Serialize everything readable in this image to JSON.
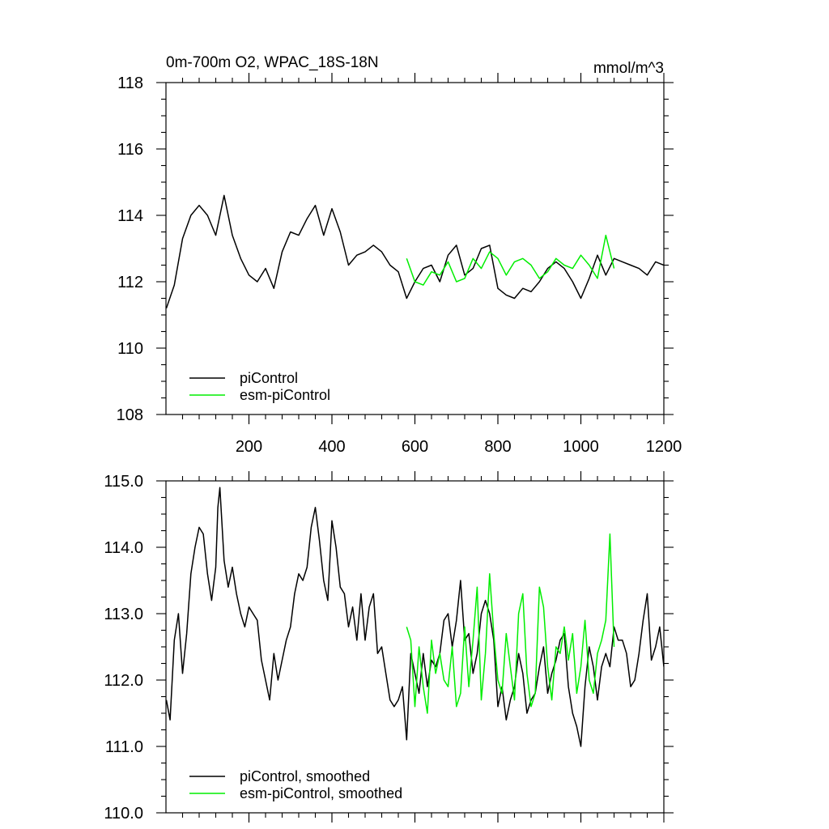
{
  "chart_data": [
    {
      "type": "line",
      "title": "0m-700m O2, WPAC_18S-18N",
      "units": "mmol/m^3",
      "xlim": [
        0,
        1200
      ],
      "ylim": [
        108,
        118
      ],
      "xticks": [
        200,
        400,
        600,
        800,
        1000,
        1200
      ],
      "yticks": [
        108,
        110,
        112,
        114,
        116,
        118
      ],
      "x_tick_labels": [
        "200",
        "400",
        "600",
        "800",
        "1000",
        "1200"
      ],
      "y_tick_labels": [
        "108",
        "110",
        "112",
        "114",
        "116",
        "118"
      ],
      "legend_position": "bottom-left",
      "series": [
        {
          "name": "piControl",
          "color": "#000000",
          "x": [
            1,
            20,
            40,
            60,
            80,
            100,
            120,
            140,
            160,
            180,
            200,
            220,
            240,
            260,
            280,
            300,
            320,
            340,
            360,
            380,
            400,
            420,
            440,
            460,
            480,
            500,
            520,
            540,
            560,
            580,
            600,
            620,
            640,
            660,
            680,
            700,
            720,
            740,
            760,
            780,
            800,
            820,
            840,
            860,
            880,
            900,
            920,
            940,
            960,
            980,
            1000,
            1020,
            1040,
            1060,
            1080,
            1100,
            1120,
            1140,
            1160,
            1180,
            1200
          ],
          "y": [
            111.2,
            111.9,
            113.3,
            114.0,
            114.3,
            114.0,
            113.4,
            114.6,
            113.4,
            112.7,
            112.2,
            112.0,
            112.4,
            111.8,
            112.9,
            113.5,
            113.4,
            113.9,
            114.3,
            113.4,
            114.2,
            113.5,
            112.5,
            112.8,
            112.9,
            113.1,
            112.9,
            112.5,
            112.3,
            111.5,
            112.0,
            112.4,
            112.5,
            112.0,
            112.8,
            113.1,
            112.2,
            112.4,
            113.0,
            113.1,
            111.8,
            111.6,
            111.5,
            111.8,
            111.7,
            112.0,
            112.4,
            112.6,
            112.4,
            112.0,
            111.5,
            112.1,
            112.8,
            112.2,
            112.7,
            112.6,
            112.5,
            112.4,
            112.2,
            112.6,
            112.5
          ]
        },
        {
          "name": "esm-piControl",
          "color": "#00ee00",
          "x": [
            580,
            600,
            620,
            640,
            660,
            680,
            700,
            720,
            740,
            760,
            780,
            800,
            820,
            840,
            860,
            880,
            900,
            920,
            940,
            960,
            980,
            1000,
            1020,
            1040,
            1060,
            1080
          ],
          "y": [
            112.7,
            112.0,
            111.9,
            112.3,
            112.2,
            112.6,
            112.0,
            112.1,
            112.7,
            112.4,
            112.9,
            112.7,
            112.2,
            112.6,
            112.7,
            112.5,
            112.1,
            112.3,
            112.7,
            112.5,
            112.4,
            112.8,
            112.5,
            112.1,
            113.4,
            112.4
          ]
        }
      ]
    },
    {
      "type": "line",
      "xlim": [
        0,
        1200
      ],
      "ylim": [
        110.0,
        115.0
      ],
      "xticks": [
        200,
        400,
        600,
        800,
        1000,
        1200
      ],
      "yticks": [
        110.0,
        111.0,
        112.0,
        113.0,
        114.0,
        115.0
      ],
      "y_tick_labels": [
        "110.0",
        "111.0",
        "112.0",
        "113.0",
        "114.0",
        "115.0"
      ],
      "legend_position": "bottom-left",
      "series": [
        {
          "name": "piControl, smoothed",
          "color": "#000000",
          "x": [
            1,
            10,
            20,
            30,
            40,
            50,
            60,
            70,
            80,
            90,
            100,
            110,
            120,
            125,
            130,
            140,
            150,
            160,
            170,
            180,
            190,
            200,
            210,
            220,
            230,
            240,
            250,
            260,
            270,
            280,
            290,
            300,
            310,
            320,
            330,
            340,
            350,
            360,
            370,
            380,
            390,
            400,
            410,
            420,
            430,
            440,
            450,
            460,
            470,
            480,
            490,
            500,
            510,
            520,
            530,
            540,
            550,
            560,
            570,
            575,
            580,
            590,
            600,
            610,
            620,
            630,
            640,
            650,
            660,
            670,
            680,
            690,
            700,
            710,
            720,
            730,
            740,
            750,
            760,
            770,
            780,
            790,
            800,
            810,
            820,
            830,
            840,
            850,
            860,
            870,
            880,
            890,
            900,
            910,
            920,
            930,
            940,
            950,
            960,
            970,
            980,
            990,
            1000,
            1010,
            1020,
            1030,
            1040,
            1050,
            1060,
            1070,
            1080,
            1090,
            1100,
            1110,
            1120,
            1130,
            1140,
            1150,
            1160,
            1170,
            1180,
            1190,
            1200
          ],
          "y": [
            111.7,
            111.4,
            112.6,
            113.0,
            112.1,
            112.7,
            113.6,
            114.0,
            114.3,
            114.2,
            113.6,
            113.2,
            113.7,
            114.6,
            114.9,
            113.8,
            113.4,
            113.7,
            113.3,
            113.0,
            112.8,
            113.1,
            113.0,
            112.9,
            112.3,
            112.0,
            111.7,
            112.4,
            112.0,
            112.3,
            112.6,
            112.8,
            113.3,
            113.6,
            113.5,
            113.7,
            114.3,
            114.6,
            114.1,
            113.5,
            113.2,
            114.4,
            114.0,
            113.4,
            113.3,
            112.8,
            113.1,
            112.6,
            113.3,
            112.6,
            113.1,
            113.3,
            112.4,
            112.5,
            112.1,
            111.7,
            111.6,
            111.7,
            111.9,
            111.5,
            111.1,
            112.4,
            112.1,
            111.8,
            112.4,
            111.9,
            112.3,
            112.2,
            112.4,
            112.9,
            113.0,
            112.5,
            112.9,
            113.5,
            112.6,
            112.7,
            112.1,
            112.4,
            113.0,
            113.2,
            113.0,
            112.6,
            111.6,
            111.9,
            111.4,
            111.7,
            111.9,
            112.4,
            112.1,
            111.5,
            111.7,
            111.8,
            112.2,
            112.5,
            111.8,
            112.1,
            112.3,
            112.6,
            112.7,
            111.9,
            111.5,
            111.3,
            111.0,
            111.9,
            112.5,
            112.2,
            111.7,
            112.2,
            112.4,
            112.2,
            112.8,
            112.6,
            112.6,
            112.4,
            111.9,
            112.0,
            112.4,
            112.9,
            113.3,
            112.3,
            112.5,
            112.8,
            112.2
          ]
        },
        {
          "name": "esm-piControl, smoothed",
          "color": "#00ee00",
          "x": [
            580,
            590,
            600,
            610,
            620,
            630,
            640,
            650,
            660,
            670,
            680,
            690,
            700,
            710,
            720,
            730,
            740,
            750,
            760,
            770,
            780,
            790,
            800,
            810,
            820,
            830,
            840,
            850,
            860,
            870,
            880,
            890,
            900,
            910,
            920,
            930,
            940,
            950,
            960,
            970,
            980,
            990,
            1000,
            1010,
            1020,
            1030,
            1040,
            1050,
            1060,
            1070,
            1080
          ],
          "y": [
            112.8,
            112.6,
            111.6,
            112.5,
            111.9,
            111.5,
            112.6,
            112.1,
            112.4,
            112.0,
            111.9,
            112.5,
            111.6,
            111.8,
            112.8,
            111.9,
            112.6,
            113.4,
            111.7,
            112.4,
            113.6,
            112.7,
            112.0,
            111.8,
            112.7,
            112.2,
            111.7,
            113.0,
            113.3,
            112.1,
            111.6,
            111.8,
            113.4,
            113.1,
            112.2,
            111.7,
            112.5,
            112.4,
            112.8,
            112.3,
            112.7,
            111.8,
            112.2,
            112.9,
            112.0,
            111.8,
            112.4,
            112.6,
            112.9,
            114.2,
            112.5
          ]
        }
      ]
    }
  ]
}
